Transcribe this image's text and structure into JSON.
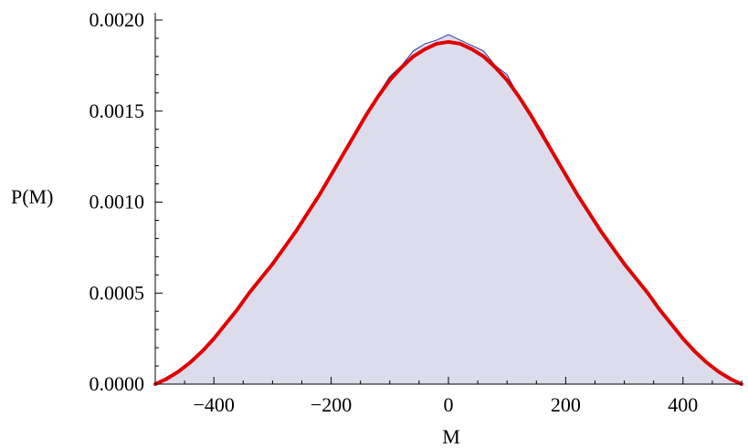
{
  "chart_data": {
    "type": "area",
    "title": "",
    "xlabel": "M",
    "ylabel": "P(M)",
    "xlim": [
      -500,
      500
    ],
    "ylim": [
      0,
      0.002
    ],
    "x_ticks": [
      -400,
      -200,
      0,
      200,
      400
    ],
    "x_tick_labels": [
      "−400",
      "−200",
      "0",
      "200",
      "400"
    ],
    "y_ticks": [
      0,
      0.0005,
      0.001,
      0.0015,
      0.002
    ],
    "y_tick_labels": [
      "0.0000",
      "0.0005",
      "0.0010",
      "0.0015",
      "0.0020"
    ],
    "grid": false,
    "legend": "none",
    "series": [
      {
        "kind": "histogram-area",
        "x": [
          -500,
          -480,
          -460,
          -440,
          -420,
          -400,
          -380,
          -360,
          -340,
          -320,
          -300,
          -280,
          -260,
          -240,
          -220,
          -200,
          -180,
          -160,
          -140,
          -120,
          -100,
          -80,
          -60,
          -40,
          -20,
          0,
          20,
          40,
          60,
          80,
          100,
          120,
          140,
          160,
          180,
          200,
          220,
          240,
          260,
          280,
          300,
          320,
          340,
          360,
          380,
          400,
          420,
          440,
          460,
          480,
          500
        ],
        "values": [
          0.0,
          4e-05,
          7e-05,
          0.00013,
          0.00019,
          0.00025,
          0.00032,
          0.00041,
          0.00049,
          0.00057,
          0.00066,
          0.00075,
          0.00083,
          0.00094,
          0.00104,
          0.00115,
          0.00126,
          0.00138,
          0.00149,
          0.00159,
          0.00169,
          0.00175,
          0.00183,
          0.00187,
          0.00189,
          0.00192,
          0.00189,
          0.00186,
          0.00183,
          0.00175,
          0.0017,
          0.00158,
          0.00148,
          0.00139,
          0.00126,
          0.00115,
          0.00103,
          0.00095,
          0.00083,
          0.00074,
          0.00066,
          0.00058,
          0.00049,
          0.00041,
          0.00032,
          0.00025,
          0.00019,
          0.00012,
          7e-05,
          4e-05,
          0.0
        ],
        "fill_color": "#dcdcec",
        "line_color": "#3333aa"
      },
      {
        "kind": "fit-curve",
        "x": [
          -500,
          -480,
          -460,
          -440,
          -420,
          -400,
          -380,
          -360,
          -340,
          -320,
          -300,
          -280,
          -260,
          -240,
          -220,
          -200,
          -180,
          -160,
          -140,
          -120,
          -100,
          -80,
          -60,
          -40,
          -20,
          0,
          20,
          40,
          60,
          80,
          100,
          120,
          140,
          160,
          180,
          200,
          220,
          240,
          260,
          280,
          300,
          320,
          340,
          360,
          380,
          400,
          420,
          440,
          460,
          480,
          500
        ],
        "values": [
          0.0,
          3e-05,
          7e-05,
          0.00012,
          0.00018,
          0.00025,
          0.00033,
          0.00041,
          0.0005,
          0.00058,
          0.00066,
          0.00075,
          0.00084,
          0.00094,
          0.00104,
          0.00115,
          0.00126,
          0.00137,
          0.00148,
          0.00158,
          0.00167,
          0.00174,
          0.0018,
          0.00184,
          0.00187,
          0.00188,
          0.00187,
          0.00184,
          0.0018,
          0.00174,
          0.00167,
          0.00158,
          0.00148,
          0.00137,
          0.00126,
          0.00115,
          0.00104,
          0.00094,
          0.00084,
          0.00075,
          0.00066,
          0.00058,
          0.0005,
          0.00041,
          0.00033,
          0.00025,
          0.00018,
          0.00012,
          7e-05,
          3e-05,
          0.0
        ],
        "line_color": "#e00000"
      }
    ]
  }
}
